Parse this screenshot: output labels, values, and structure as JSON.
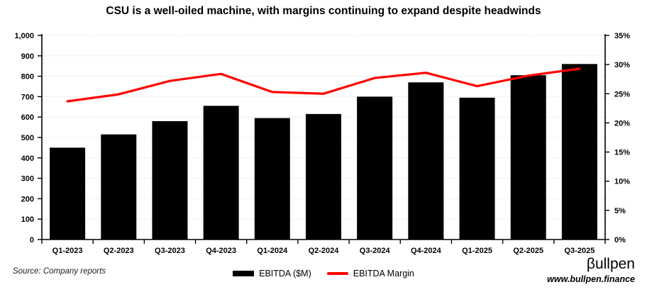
{
  "title": "CSU is a well-oiled machine, with margins continuing to expand despite headwinds",
  "source": "Source: Company reports",
  "branding": {
    "logo": "βullpen",
    "url": "www.bullpen.finance"
  },
  "legend": {
    "ebitda_label": "EBITDA ($M)",
    "margin_label": "EBITDA Margin"
  },
  "colors": {
    "bar": "#000000",
    "line": "#ff0000",
    "gridline": "#d9d9d9",
    "axis": "#000000",
    "text": "#000000"
  },
  "chart_data": {
    "type": "bar",
    "subtype": "combo-bar-line",
    "title": "CSU is a well-oiled machine, with margins continuing to expand despite headwinds",
    "categories": [
      "Q1-2023",
      "Q2-2023",
      "Q3-2023",
      "Q4-2023",
      "Q1-2024",
      "Q2-2024",
      "Q3-2024",
      "Q4-2024",
      "Q1-2025",
      "Q2-2025",
      "Q3-2025"
    ],
    "series": [
      {
        "name": "EBITDA ($M)",
        "type": "bar",
        "axis": "left",
        "values": [
          450,
          515,
          580,
          655,
          595,
          615,
          700,
          770,
          695,
          805,
          860
        ]
      },
      {
        "name": "EBITDA Margin",
        "type": "line",
        "axis": "right",
        "values": [
          23.7,
          24.9,
          27.2,
          28.4,
          25.3,
          25.0,
          27.7,
          28.6,
          26.3,
          28.1,
          29.3
        ]
      }
    ],
    "left_axis": {
      "min": 0,
      "max": 1000,
      "step": 100,
      "tick_labels": [
        "0",
        "100",
        "200",
        "300",
        "400",
        "500",
        "600",
        "700",
        "800",
        "900",
        "1,000"
      ]
    },
    "right_axis": {
      "min": 0,
      "max": 35,
      "step": 5,
      "tick_labels": [
        "0%",
        "5%",
        "10%",
        "15%",
        "20%",
        "25%",
        "30%",
        "35%"
      ]
    },
    "grid": "horizontal-dotted",
    "legend_position": "bottom-center"
  }
}
